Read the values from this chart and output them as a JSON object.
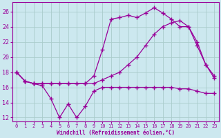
{
  "xlabel": "Windchill (Refroidissement éolien,°C)",
  "background_color": "#cce8ef",
  "grid_color": "#aacccc",
  "line_color": "#990099",
  "x_ticks": [
    0,
    1,
    2,
    3,
    4,
    5,
    6,
    7,
    8,
    9,
    10,
    11,
    12,
    13,
    14,
    15,
    16,
    17,
    18,
    19,
    20,
    21,
    22,
    23
  ],
  "y_ticks": [
    12,
    14,
    16,
    18,
    20,
    22,
    24,
    26
  ],
  "ylim": [
    11.5,
    27.2
  ],
  "xlim": [
    -0.5,
    23.5
  ],
  "line1_x": [
    0,
    1,
    2,
    3,
    4,
    5,
    6,
    7,
    8,
    9,
    10,
    11,
    12,
    13,
    14,
    15,
    16,
    17,
    18,
    19,
    20,
    21,
    22,
    23
  ],
  "line1_y": [
    18.0,
    16.8,
    16.5,
    16.2,
    14.5,
    12.0,
    13.8,
    12.0,
    13.5,
    15.5,
    16.0,
    16.0,
    16.0,
    16.0,
    16.0,
    16.0,
    16.0,
    16.0,
    16.0,
    15.8,
    15.8,
    15.5,
    15.2,
    15.2
  ],
  "line2_x": [
    0,
    1,
    2,
    3,
    4,
    5,
    6,
    7,
    8,
    9,
    10,
    11,
    12,
    13,
    14,
    15,
    16,
    17,
    18,
    19,
    20,
    21,
    22,
    23
  ],
  "line2_y": [
    18.0,
    16.8,
    16.5,
    16.5,
    16.5,
    16.5,
    16.5,
    16.5,
    16.5,
    16.5,
    17.0,
    17.5,
    18.0,
    19.0,
    20.0,
    21.5,
    23.0,
    24.0,
    24.5,
    24.8,
    24.0,
    21.5,
    19.0,
    17.5
  ],
  "line3_x": [
    0,
    1,
    2,
    3,
    4,
    5,
    6,
    7,
    8,
    9,
    10,
    11,
    12,
    13,
    14,
    15,
    16,
    17,
    18,
    19,
    20,
    21,
    22,
    23
  ],
  "line3_y": [
    18.0,
    16.8,
    16.5,
    16.5,
    16.5,
    16.5,
    16.5,
    16.5,
    16.5,
    17.5,
    21.0,
    25.0,
    25.2,
    25.5,
    25.2,
    25.8,
    26.5,
    25.8,
    25.0,
    24.0,
    24.0,
    22.0,
    19.0,
    17.2
  ]
}
